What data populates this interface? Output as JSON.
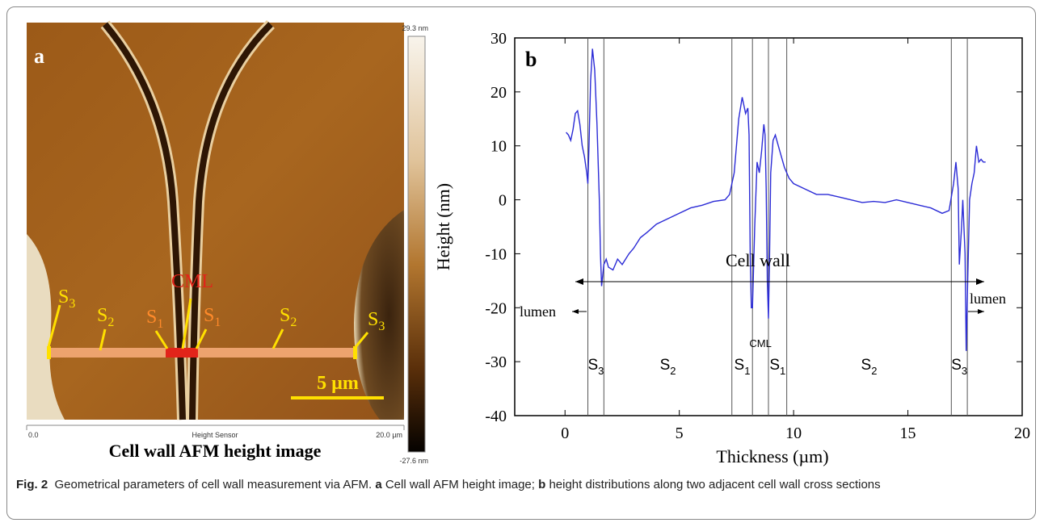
{
  "panel_a": {
    "label": "a",
    "annotations": [
      {
        "text": "S",
        "sub": "3"
      },
      {
        "text": "S",
        "sub": "2"
      },
      {
        "text": "S",
        "sub": "1"
      },
      {
        "text": "CML"
      },
      {
        "text": "S",
        "sub": "1"
      },
      {
        "text": "S",
        "sub": "2"
      },
      {
        "text": "S",
        "sub": "3"
      }
    ],
    "scale_bar": "5 µm",
    "colorbar_max": "29.3 nm",
    "colorbar_min": "-27.6 nm",
    "axis_start": "0.0",
    "axis_label": "Height Sensor",
    "axis_end": "20.0 µm",
    "title": "Cell wall AFM height image"
  },
  "chart_data": {
    "type": "line",
    "panel_label": "b",
    "xlabel": "Thickness (µm)",
    "ylabel": "Height (nm)",
    "xlim": [
      -2.2,
      20
    ],
    "ylim": [
      -40,
      30
    ],
    "xticks": [
      0,
      5,
      10,
      15,
      20
    ],
    "yticks": [
      -40,
      -30,
      -20,
      -10,
      0,
      10,
      20,
      30
    ],
    "x": [
      0.05,
      0.15,
      0.25,
      0.35,
      0.45,
      0.55,
      0.65,
      0.75,
      0.85,
      0.95,
      1.0,
      1.05,
      1.12,
      1.2,
      1.3,
      1.4,
      1.5,
      1.55,
      1.6,
      1.7,
      1.8,
      1.9,
      2.1,
      2.3,
      2.5,
      2.8,
      3.0,
      3.3,
      3.6,
      4.0,
      4.5,
      5.0,
      5.5,
      6.0,
      6.5,
      7.0,
      7.2,
      7.4,
      7.6,
      7.75,
      7.9,
      8.0,
      8.05,
      8.1,
      8.15,
      8.2,
      8.3,
      8.4,
      8.5,
      8.6,
      8.7,
      8.75,
      8.8,
      8.85,
      8.9,
      8.95,
      9.0,
      9.1,
      9.2,
      9.4,
      9.6,
      9.8,
      10.0,
      10.5,
      11.0,
      11.5,
      12.0,
      12.5,
      13.0,
      13.5,
      14.0,
      14.5,
      15.0,
      15.5,
      16.0,
      16.5,
      16.8,
      17.0,
      17.1,
      17.2,
      17.25,
      17.35,
      17.4,
      17.5,
      17.55,
      17.6,
      17.7,
      17.8,
      17.9,
      18.0,
      18.1,
      18.2,
      18.3,
      18.4
    ],
    "series": [
      {
        "color": "#2b2bd6",
        "values": [
          12.5,
          12,
          11,
          13,
          16,
          16.5,
          14,
          10,
          8,
          5,
          3,
          10,
          22,
          28,
          24,
          14,
          0,
          -10,
          -16,
          -12,
          -11,
          -12.5,
          -13,
          -11,
          -12,
          -10,
          -9,
          -7,
          -6,
          -4.5,
          -3.5,
          -2.5,
          -1.5,
          -1,
          -0.3,
          0,
          1,
          5,
          15,
          19,
          16,
          17,
          12,
          -10,
          -20,
          -20,
          -5,
          7,
          5,
          9,
          14,
          12,
          2,
          -15,
          -22,
          -10,
          5,
          11,
          12,
          9,
          6,
          4,
          3,
          2,
          1,
          1,
          0.5,
          0,
          -0.5,
          -0.3,
          -0.5,
          0,
          -0.5,
          -1,
          -1.5,
          -2.5,
          -2,
          3,
          7,
          2,
          -12,
          -5,
          0,
          -10,
          -28,
          -18,
          0,
          3,
          5,
          10,
          7,
          7.5,
          7,
          7
        ]
      }
    ],
    "boundaries": [
      1.0,
      1.7,
      7.3,
      8.2,
      8.9,
      9.7,
      16.9,
      17.6
    ],
    "regions": [
      {
        "text": "S",
        "sub": "3"
      },
      {
        "text": "S",
        "sub": "2"
      },
      {
        "text": "S",
        "sub": "1"
      },
      {
        "text": "CML"
      },
      {
        "text": "S",
        "sub": "1"
      },
      {
        "text": "S",
        "sub": "2"
      },
      {
        "text": "S",
        "sub": "3"
      }
    ],
    "span_label": "Cell wall",
    "lumen_left": "lumen",
    "lumen_right": "lumen"
  },
  "caption": {
    "fig": "Fig. 2",
    "text": "Geometrical parameters of cell wall measurement via AFM.",
    "a": "a",
    "a_text": "Cell wall AFM height image;",
    "b": "b",
    "b_text": "height distributions along two adjacent cell wall cross sections"
  }
}
